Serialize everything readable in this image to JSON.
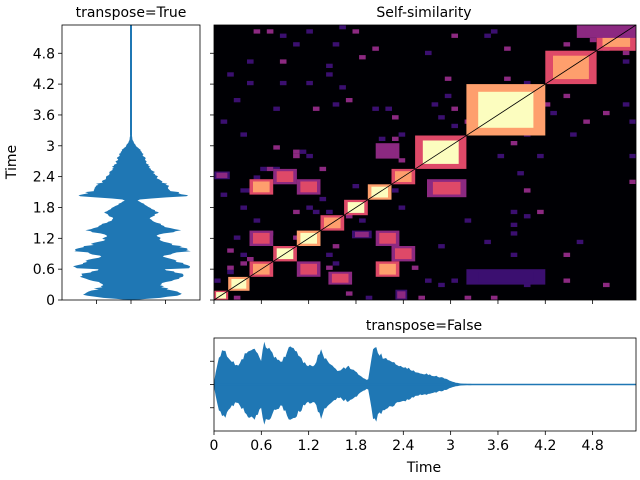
{
  "chart_data": [
    {
      "type": "area",
      "title": "transpose=True",
      "ylabel": "Time",
      "xlabel": "",
      "orientation": "vertical-waveform",
      "ylim": [
        0,
        5.35
      ],
      "xlim": [
        -1,
        1
      ],
      "y_ticks": [
        "0",
        "0.6",
        "1.2",
        "1.8",
        "2.4",
        "3",
        "3.6",
        "4.2",
        "4.8"
      ],
      "y_tick_values": [
        0,
        0.6,
        1.2,
        1.8,
        2.4,
        3.0,
        3.6,
        4.2,
        4.8
      ],
      "x_ticks": [
        -0.5,
        0,
        0.5
      ],
      "color": "#1f77b4",
      "envelope": {
        "time": [
          0,
          0.05,
          0.1,
          0.15,
          0.2,
          0.25,
          0.3,
          0.35,
          0.4,
          0.45,
          0.5,
          0.55,
          0.6,
          0.62,
          0.65,
          0.7,
          0.75,
          0.8,
          0.85,
          0.9,
          0.93,
          0.95,
          1.0,
          1.05,
          1.1,
          1.15,
          1.2,
          1.25,
          1.3,
          1.35,
          1.4,
          1.45,
          1.5,
          1.55,
          1.6,
          1.65,
          1.7,
          1.75,
          1.8,
          1.85,
          1.9,
          1.95,
          2.0,
          2.02,
          2.05,
          2.1,
          2.15,
          2.2,
          2.25,
          2.3,
          2.35,
          2.4,
          2.45,
          2.5,
          2.55,
          2.6,
          2.65,
          2.7,
          2.75,
          2.8,
          2.85,
          2.9,
          2.95,
          3.0,
          3.05,
          3.1,
          3.15,
          3.2,
          3.3,
          3.4,
          3.6,
          4.0,
          4.5,
          5.0,
          5.35
        ],
        "amplitude": [
          0.05,
          0.55,
          0.8,
          0.75,
          0.6,
          0.5,
          0.45,
          0.55,
          0.75,
          0.85,
          0.8,
          0.7,
          0.5,
          0.9,
          0.95,
          0.85,
          0.7,
          0.6,
          0.5,
          0.65,
          0.8,
          0.95,
          0.88,
          0.75,
          0.6,
          0.5,
          0.45,
          0.4,
          0.55,
          0.8,
          0.62,
          0.5,
          0.42,
          0.35,
          0.3,
          0.38,
          0.42,
          0.35,
          0.28,
          0.22,
          0.15,
          0.08,
          0.6,
          0.9,
          0.85,
          0.7,
          0.62,
          0.58,
          0.55,
          0.5,
          0.45,
          0.4,
          0.38,
          0.35,
          0.3,
          0.28,
          0.26,
          0.24,
          0.22,
          0.2,
          0.18,
          0.16,
          0.12,
          0.08,
          0.05,
          0.03,
          0.02,
          0.015,
          0.012,
          0.01,
          0.01,
          0.01,
          0.01,
          0.01,
          0.01
        ]
      },
      "spike": {
        "time": 3.2,
        "extends_to": 5.35
      }
    },
    {
      "type": "heatmap",
      "title": "Self-similarity",
      "xlabel": "",
      "ylabel": "",
      "xlim": [
        0,
        5.35
      ],
      "ylim": [
        0,
        5.35
      ],
      "colormap": "magma",
      "colors": [
        "#000004",
        "#3b0f70",
        "#8c2981",
        "#de4968",
        "#fe9f6d",
        "#fcfdbf"
      ],
      "blocks": [
        {
          "x": [
            0.0,
            0.18
          ],
          "y": [
            0.0,
            0.18
          ],
          "level": 0.9
        },
        {
          "x": [
            0.18,
            0.45
          ],
          "y": [
            0.18,
            0.45
          ],
          "level": 0.95
        },
        {
          "x": [
            0.45,
            0.75
          ],
          "y": [
            0.45,
            0.75
          ],
          "level": 0.85
        },
        {
          "x": [
            0.75,
            1.05
          ],
          "y": [
            0.75,
            1.05
          ],
          "level": 0.9
        },
        {
          "x": [
            1.05,
            1.35
          ],
          "y": [
            1.05,
            1.35
          ],
          "level": 0.95
        },
        {
          "x": [
            1.35,
            1.65
          ],
          "y": [
            1.35,
            1.65
          ],
          "level": 0.8
        },
        {
          "x": [
            1.65,
            1.95
          ],
          "y": [
            1.65,
            1.95
          ],
          "level": 0.9
        },
        {
          "x": [
            1.95,
            2.25
          ],
          "y": [
            1.95,
            2.25
          ],
          "level": 0.95
        },
        {
          "x": [
            2.25,
            2.55
          ],
          "y": [
            2.25,
            2.55
          ],
          "level": 0.85
        },
        {
          "x": [
            2.55,
            3.2
          ],
          "y": [
            2.55,
            3.2
          ],
          "level": 0.9
        },
        {
          "x": [
            3.2,
            4.2
          ],
          "y": [
            3.2,
            4.2
          ],
          "level": 0.97
        },
        {
          "x": [
            4.2,
            4.85
          ],
          "y": [
            4.2,
            4.85
          ],
          "level": 0.8
        },
        {
          "x": [
            4.85,
            5.35
          ],
          "y": [
            4.85,
            5.35
          ],
          "level": 0.75
        },
        {
          "x": [
            0.45,
            0.75
          ],
          "y": [
            1.05,
            1.35
          ],
          "level": 0.6
        },
        {
          "x": [
            1.05,
            1.35
          ],
          "y": [
            0.45,
            0.75
          ],
          "level": 0.6
        },
        {
          "x": [
            0.75,
            1.05
          ],
          "y": [
            2.25,
            2.55
          ],
          "level": 0.65
        },
        {
          "x": [
            2.25,
            2.55
          ],
          "y": [
            0.75,
            1.05
          ],
          "level": 0.65
        },
        {
          "x": [
            0.45,
            0.75
          ],
          "y": [
            2.05,
            2.35
          ],
          "level": 0.7
        },
        {
          "x": [
            2.05,
            2.35
          ],
          "y": [
            0.45,
            0.75
          ],
          "level": 0.7
        },
        {
          "x": [
            1.05,
            1.35
          ],
          "y": [
            2.05,
            2.35
          ],
          "level": 0.55
        },
        {
          "x": [
            2.05,
            2.35
          ],
          "y": [
            1.05,
            1.35
          ],
          "level": 0.55
        },
        {
          "x": [
            1.45,
            1.75
          ],
          "y": [
            0.3,
            0.55
          ],
          "level": 0.5
        },
        {
          "x": [
            2.05,
            2.35
          ],
          "y": [
            2.75,
            3.05
          ],
          "level": 0.45
        },
        {
          "x": [
            2.7,
            3.2
          ],
          "y": [
            2.0,
            2.35
          ],
          "level": 0.6
        },
        {
          "x": [
            1.75,
            2.0
          ],
          "y": [
            1.2,
            1.35
          ],
          "level": 0.3
        },
        {
          "x": [
            3.2,
            4.2
          ],
          "y": [
            0.3,
            0.6
          ],
          "level": 0.25
        },
        {
          "x": [
            4.6,
            5.35
          ],
          "y": [
            5.1,
            5.35
          ],
          "level": 0.45
        },
        {
          "x": [
            0.0,
            0.2
          ],
          "y": [
            2.35,
            2.5
          ],
          "level": 0.35
        },
        {
          "x": [
            2.3,
            2.45
          ],
          "y": [
            0.0,
            0.2
          ],
          "level": 0.35
        }
      ]
    },
    {
      "type": "area",
      "title": "transpose=False",
      "xlabel": "Time",
      "ylabel": "",
      "xlim": [
        0,
        5.35
      ],
      "ylim": [
        -1,
        1
      ],
      "x_ticks": [
        "0",
        "0.6",
        "1.2",
        "1.8",
        "2.4",
        "3",
        "3.6",
        "4.2",
        "4.8"
      ],
      "x_tick_values": [
        0,
        0.6,
        1.2,
        1.8,
        2.4,
        3.0,
        3.6,
        4.2,
        4.8
      ],
      "y_ticks": [
        -0.5,
        0,
        0.5
      ],
      "color": "#1f77b4"
    }
  ]
}
